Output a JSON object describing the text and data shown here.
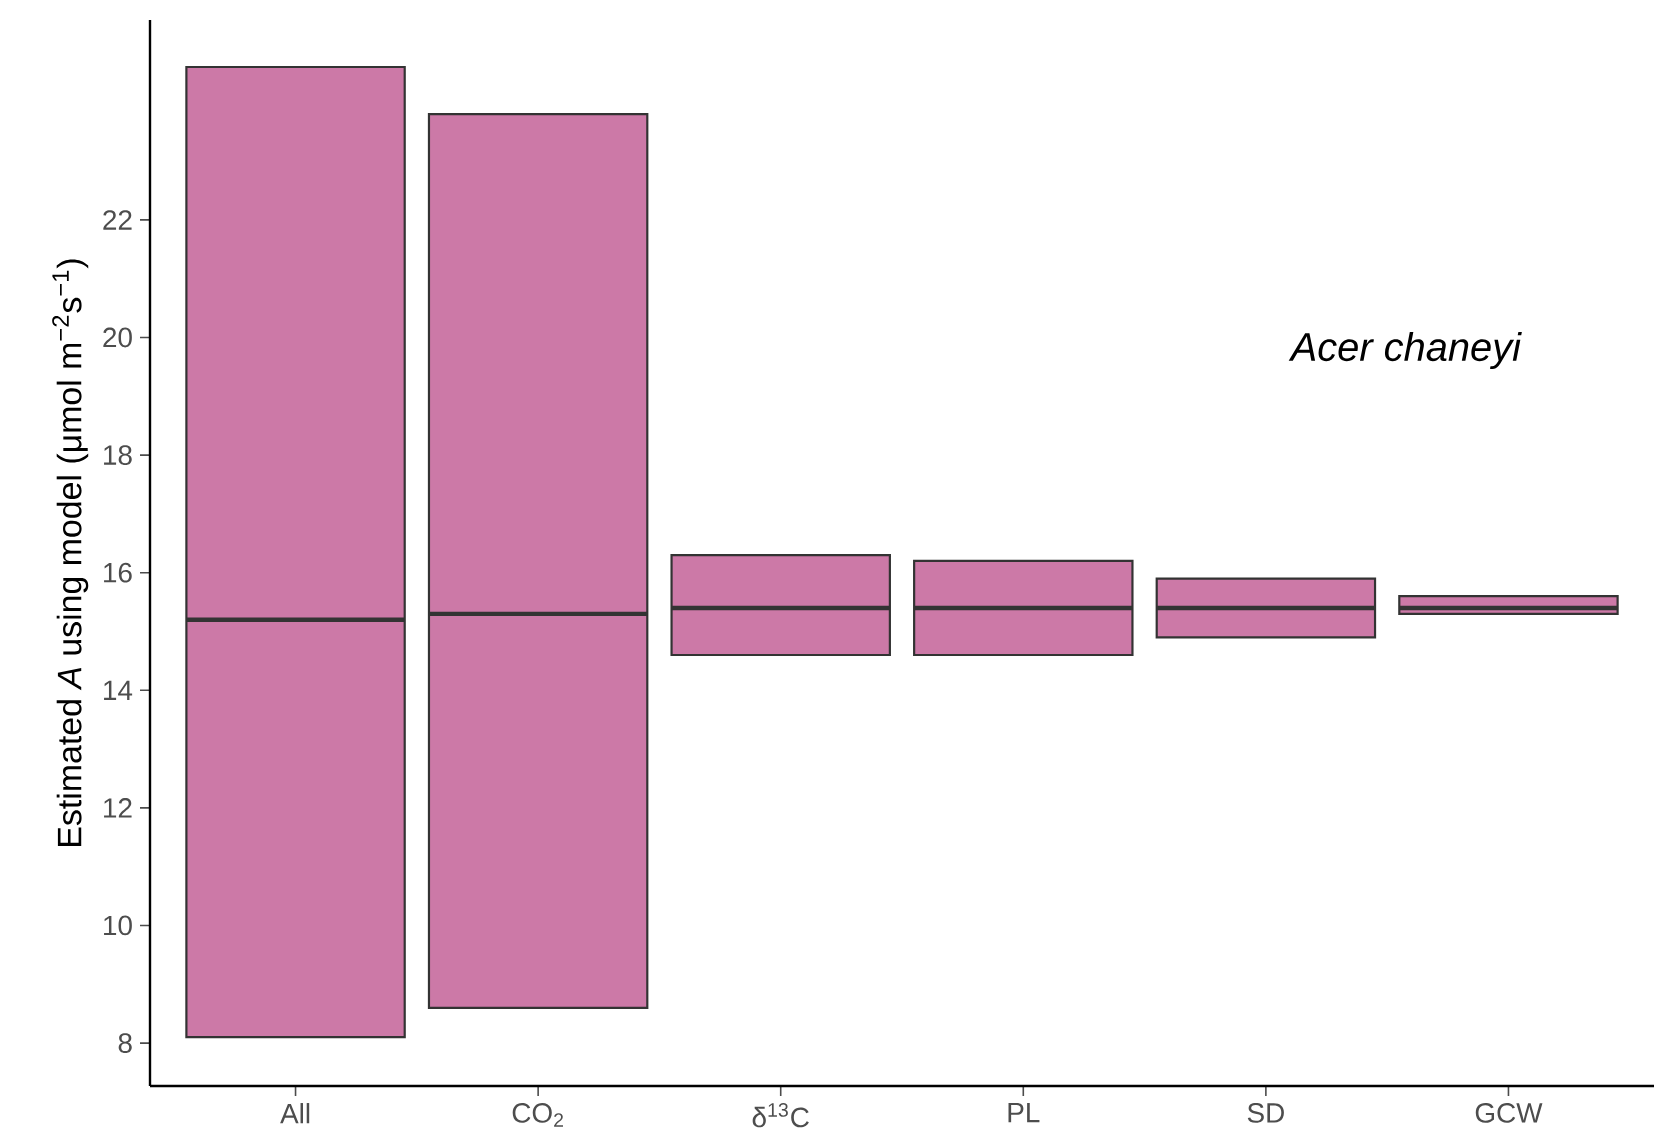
{
  "chart_data": {
    "type": "box",
    "ylabel": "Estimated *A* using model (μmol m$^{−2}$s$^{−1}$)",
    "categories": [
      "All",
      "CO$_{2}$",
      "δ$^{13}$C",
      "PL",
      "SD",
      "GCW"
    ],
    "boxes": [
      {
        "low": 8.1,
        "q1": 8.1,
        "median": 15.2,
        "q3": 24.6,
        "high": 24.6
      },
      {
        "low": 8.6,
        "q1": 8.6,
        "median": 15.3,
        "q3": 23.8,
        "high": 23.8
      },
      {
        "low": 14.6,
        "q1": 14.6,
        "median": 15.4,
        "q3": 16.3,
        "high": 16.3
      },
      {
        "low": 14.6,
        "q1": 14.6,
        "median": 15.4,
        "q3": 16.2,
        "high": 16.2
      },
      {
        "low": 14.9,
        "q1": 14.9,
        "median": 15.4,
        "q3": 15.9,
        "high": 15.9
      },
      {
        "low": 15.3,
        "q1": 15.3,
        "median": 15.4,
        "q3": 15.6,
        "high": 15.6
      }
    ],
    "color": "#cc79a7",
    "ylim": [
      7.27,
      25.4
    ],
    "yticks": [
      8,
      10,
      12,
      14,
      16,
      18,
      20,
      22
    ],
    "annotations": [
      "Acer chaneyi"
    ]
  }
}
